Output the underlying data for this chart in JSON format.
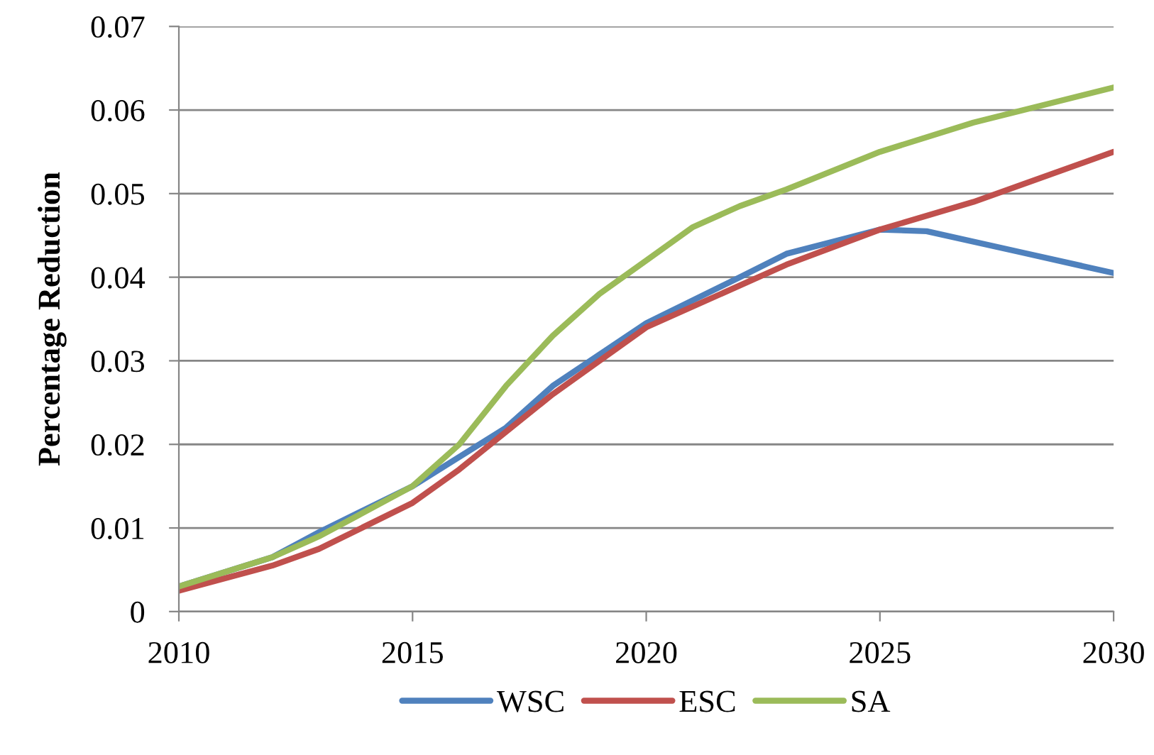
{
  "chart_data": {
    "type": "line",
    "ylabel": "Percentage Reduction",
    "xlim": [
      2010,
      2030
    ],
    "xticks": [
      2010,
      2015,
      2020,
      2025,
      2030
    ],
    "ylim": [
      0,
      0.07
    ],
    "yticks": [
      0,
      0.01,
      0.02,
      0.03,
      0.04,
      0.05,
      0.06,
      0.07
    ],
    "grid": "y",
    "legend": "bottom",
    "marker": "none",
    "line_style": "solid",
    "series": [
      {
        "name": "WSC",
        "color": "#4f81bd",
        "x": [
          2010,
          2012,
          2013,
          2015,
          2017,
          2018,
          2020,
          2022,
          2023,
          2025,
          2026,
          2028,
          2030
        ],
        "values": [
          0.003,
          0.0065,
          0.0095,
          0.015,
          0.022,
          0.027,
          0.0345,
          0.04,
          0.0428,
          0.0457,
          0.0455,
          0.043,
          0.0405
        ]
      },
      {
        "name": "ESC",
        "color": "#c0504d",
        "x": [
          2010,
          2012,
          2013,
          2015,
          2016,
          2017,
          2018,
          2020,
          2022,
          2023,
          2025,
          2027,
          2030
        ],
        "values": [
          0.0025,
          0.0055,
          0.0075,
          0.013,
          0.017,
          0.0215,
          0.026,
          0.034,
          0.039,
          0.0415,
          0.0457,
          0.049,
          0.055
        ]
      },
      {
        "name": "SA",
        "color": "#9bbb59",
        "x": [
          2010,
          2012,
          2013,
          2015,
          2016,
          2017,
          2018,
          2019,
          2020,
          2021,
          2022,
          2023,
          2025,
          2027,
          2030
        ],
        "values": [
          0.003,
          0.0065,
          0.009,
          0.015,
          0.02,
          0.027,
          0.033,
          0.038,
          0.042,
          0.046,
          0.0485,
          0.0505,
          0.055,
          0.0585,
          0.0627
        ]
      }
    ]
  }
}
